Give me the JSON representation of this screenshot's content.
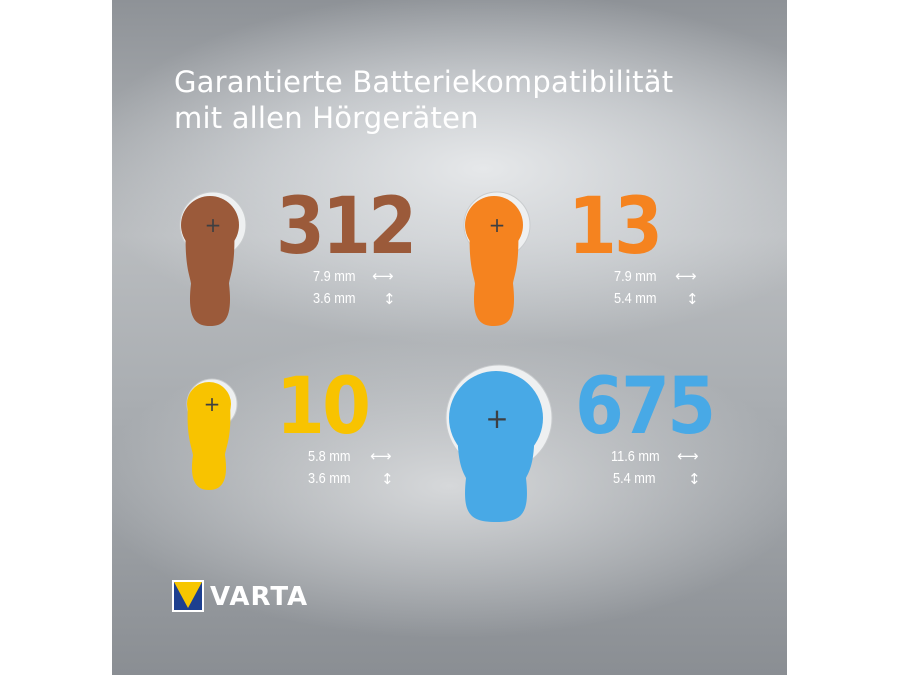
{
  "headline": {
    "line1": "Garantierte Batteriekompatibilität",
    "line2": "mit allen Hörgeräten"
  },
  "batteries": [
    {
      "size": "312",
      "color": "#9b5a3a",
      "diameter": "7.9 mm",
      "height": "3.6 mm",
      "icon_width": "double-horizontal-arrow-icon",
      "icon_height": "double-vertical-arrow-icon",
      "width_arrow": "⟷",
      "height_arrow": "↕",
      "polarity": "+"
    },
    {
      "size": "13",
      "color": "#f5831f",
      "diameter": "7.9 mm",
      "height": "5.4 mm",
      "width_arrow": "⟷",
      "height_arrow": "↕",
      "polarity": "+"
    },
    {
      "size": "10",
      "color": "#f8c300",
      "diameter": "5.8 mm",
      "height": "3.6 mm",
      "width_arrow": "⟷",
      "height_arrow": "↕",
      "polarity": "+"
    },
    {
      "size": "675",
      "color": "#48a9e6",
      "diameter": "11.6 mm",
      "height": "5.4 mm",
      "width_arrow": "⟷",
      "height_arrow": "↕",
      "polarity": "+"
    }
  ],
  "brand": {
    "name": "VARTA",
    "logo_colors": {
      "yellow": "#f7c600",
      "blue": "#1d3f8f"
    }
  }
}
